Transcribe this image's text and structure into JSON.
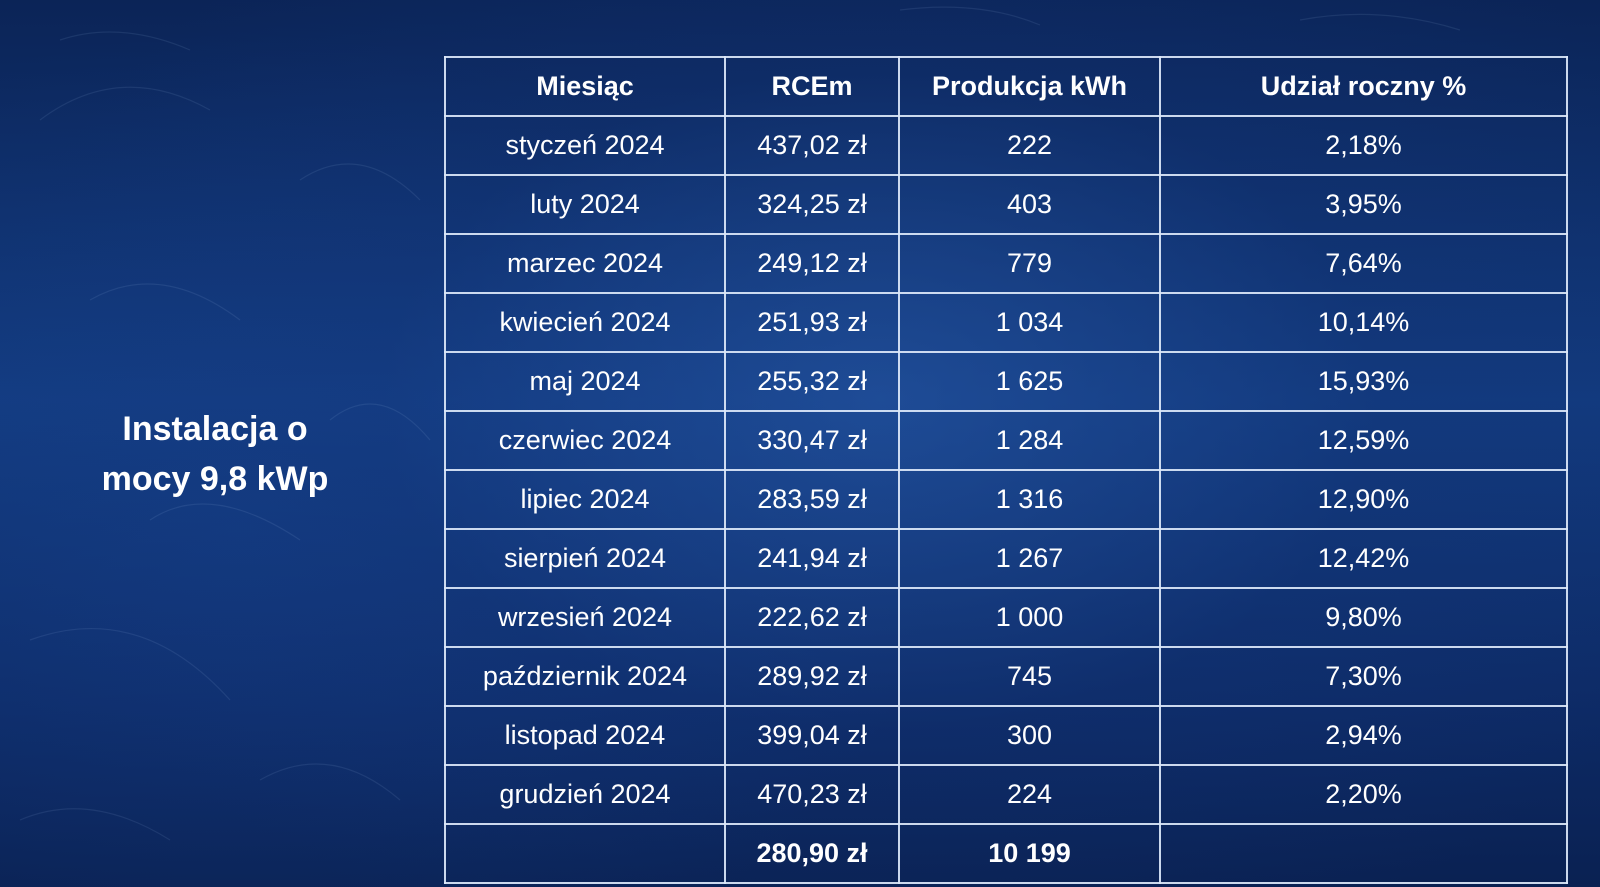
{
  "side_title": {
    "line1": "Instalacja o",
    "line2": "mocy 9,8 kWp"
  },
  "table": {
    "headers": [
      "Miesiąc",
      "RCEm",
      "Produkcja kWh",
      "Udział roczny %"
    ],
    "rows": [
      {
        "month": "styczeń 2024",
        "rcem": "437,02 zł",
        "production": "222",
        "share": "2,18%"
      },
      {
        "month": "luty 2024",
        "rcem": "324,25 zł",
        "production": "403",
        "share": "3,95%"
      },
      {
        "month": "marzec 2024",
        "rcem": "249,12 zł",
        "production": "779",
        "share": "7,64%"
      },
      {
        "month": "kwiecień 2024",
        "rcem": "251,93 zł",
        "production": "1 034",
        "share": "10,14%"
      },
      {
        "month": "maj 2024",
        "rcem": "255,32 zł",
        "production": "1 625",
        "share": "15,93%"
      },
      {
        "month": "czerwiec 2024",
        "rcem": "330,47 zł",
        "production": "1 284",
        "share": "12,59%"
      },
      {
        "month": "lipiec 2024",
        "rcem": "283,59 zł",
        "production": "1 316",
        "share": "12,90%"
      },
      {
        "month": "sierpień 2024",
        "rcem": "241,94 zł",
        "production": "1 267",
        "share": "12,42%"
      },
      {
        "month": "wrzesień 2024",
        "rcem": "222,62 zł",
        "production": "1 000",
        "share": "9,80%"
      },
      {
        "month": "październik 2024",
        "rcem": "289,92 zł",
        "production": "745",
        "share": "7,30%"
      },
      {
        "month": "listopad 2024",
        "rcem": "399,04 zł",
        "production": "300",
        "share": "2,94%"
      },
      {
        "month": "grudzień 2024",
        "rcem": "470,23 zł",
        "production": "224",
        "share": "2,20%"
      }
    ],
    "total": {
      "month": "",
      "rcem": "280,90 zł",
      "production": "10 199",
      "share": ""
    }
  },
  "colors": {
    "background": "#123a7e",
    "grid_lines": "#dce8fa",
    "text": "#ffffff"
  }
}
